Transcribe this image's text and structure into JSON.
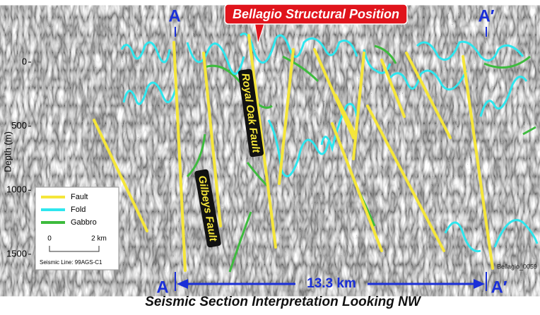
{
  "section": {
    "markers": {
      "left_top": "A",
      "right_top": "A′",
      "left_bottom": "A",
      "right_bottom": "A′"
    },
    "callout": "Bellagio Structural Position",
    "faults": {
      "royal_oak": "Royal Oak Fault",
      "gilbeys": "Gilbeys Fault"
    },
    "axis": {
      "label": "Depth (m)",
      "ticks": [
        0,
        500,
        1000,
        1500
      ]
    },
    "legend": {
      "items": [
        "Fault",
        "Fold",
        "Gabbro"
      ],
      "scale_start": "0",
      "scale_end": "2 km",
      "line": "Seismic Line: 99AGS-C1"
    },
    "image_id": "Bellagio_0059",
    "distance": "13.3 km",
    "title": "Seismic Section Interpretation Looking NW"
  }
}
